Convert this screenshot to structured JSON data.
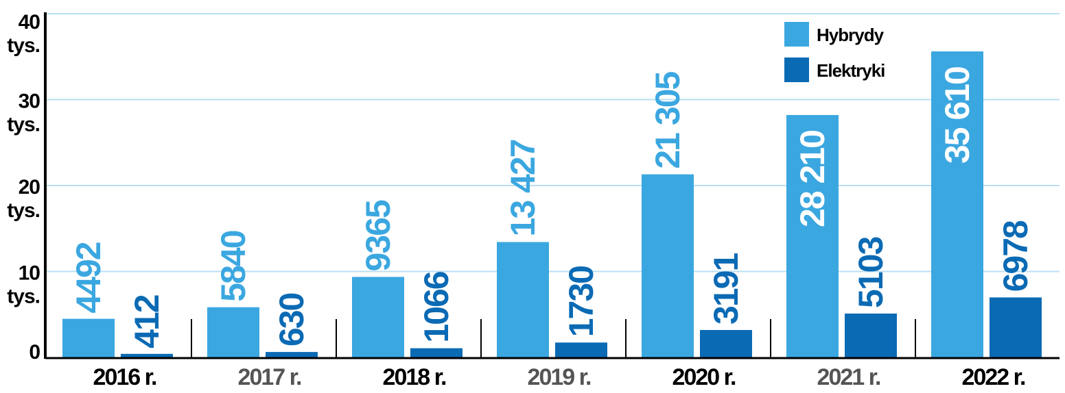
{
  "chart_data": {
    "type": "bar",
    "categories": [
      "2016 r.",
      "2017 r.",
      "2018 r.",
      "2019 r.",
      "2020 r.",
      "2021 r.",
      "2022 r."
    ],
    "series": [
      {
        "name": "Hybrydy",
        "values": [
          4492,
          5840,
          9365,
          13427,
          21305,
          28210,
          35610
        ],
        "labels": [
          "4492",
          "5840",
          "9365",
          "13 427",
          "21 305",
          "28 210",
          "35 610"
        ],
        "color": "#3ba7e0"
      },
      {
        "name": "Elektryki",
        "values": [
          412,
          630,
          1066,
          1730,
          3191,
          5103,
          6978
        ],
        "labels": [
          "412",
          "630",
          "1066",
          "1730",
          "3191",
          "5103",
          "6978"
        ],
        "color": "#0b6ab4"
      }
    ],
    "y_ticks": [
      {
        "value": 0,
        "line1": "0",
        "line2": ""
      },
      {
        "value": 10000,
        "line1": "10",
        "line2": "tys."
      },
      {
        "value": 20000,
        "line1": "20",
        "line2": "tys."
      },
      {
        "value": 30000,
        "line1": "30",
        "line2": "tys."
      },
      {
        "value": 40000,
        "line1": "40",
        "line2": "tys."
      }
    ],
    "ylim": [
      0,
      40000
    ],
    "grid": true,
    "legend_position": "top-right",
    "xtick_colors": [
      "#000000",
      "#555555",
      "#000000",
      "#555555",
      "#000000",
      "#555555",
      "#000000"
    ],
    "title": "",
    "xlabel": "",
    "ylabel": ""
  }
}
